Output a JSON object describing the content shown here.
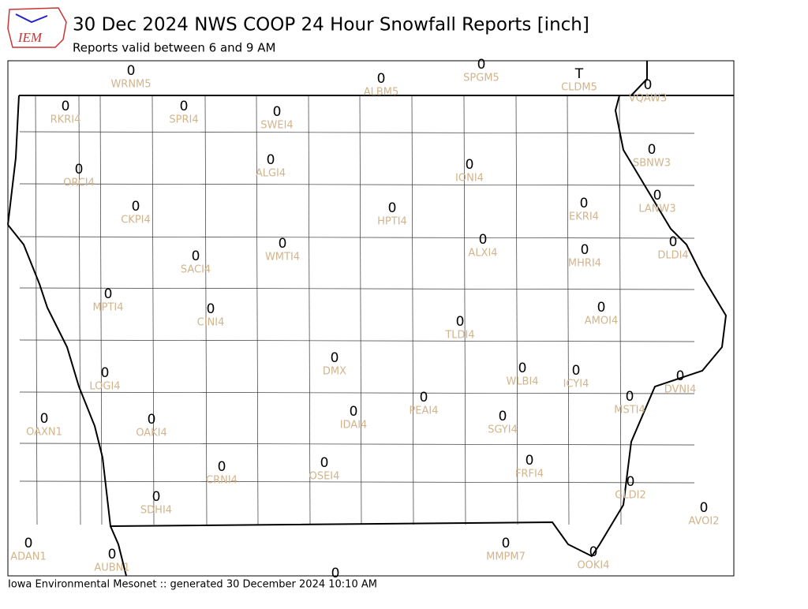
{
  "header": {
    "logo_text": "IEM",
    "title": "30 Dec 2024 NWS COOP 24 Hour Snowfall Reports [inch]",
    "subtitle": "Reports valid between 6 and 9 AM"
  },
  "stations": [
    {
      "value": 0,
      "id": "WRNM5"
    },
    {
      "value": 0,
      "id": "ALBM5"
    },
    {
      "value": 0,
      "id": "SPGM5"
    },
    {
      "value": "T",
      "id": "CLDM5"
    },
    {
      "value": 0,
      "id": "VQAW3"
    },
    {
      "value": 0,
      "id": "RKRI4"
    },
    {
      "value": 0,
      "id": "SPRI4"
    },
    {
      "value": 0,
      "id": "SWEI4"
    },
    {
      "value": 0,
      "id": "SBNW3"
    },
    {
      "value": 0,
      "id": "ORCI4"
    },
    {
      "value": 0,
      "id": "ALGI4"
    },
    {
      "value": 0,
      "id": "IONI4"
    },
    {
      "value": 0,
      "id": "CKPI4"
    },
    {
      "value": 0,
      "id": "HPTI4"
    },
    {
      "value": 0,
      "id": "EKRI4"
    },
    {
      "value": 0,
      "id": "LANW3"
    },
    {
      "value": 0,
      "id": "SACI4"
    },
    {
      "value": 0,
      "id": "WMTI4"
    },
    {
      "value": 0,
      "id": "ALXI4"
    },
    {
      "value": 0,
      "id": "MHRI4"
    },
    {
      "value": 0,
      "id": "DLDI4"
    },
    {
      "value": 0,
      "id": "MPTI4"
    },
    {
      "value": 0,
      "id": "CINI4"
    },
    {
      "value": 0,
      "id": "TLDI4"
    },
    {
      "value": 0,
      "id": "AMOI4"
    },
    {
      "value": 0,
      "id": "DMX"
    },
    {
      "value": 0,
      "id": "LOGI4"
    },
    {
      "value": 0,
      "id": "WLBI4"
    },
    {
      "value": 0,
      "id": "ICYI4"
    },
    {
      "value": 0,
      "id": "DVNI4"
    },
    {
      "value": 0,
      "id": "PEAI4"
    },
    {
      "value": 0,
      "id": "OAXN1"
    },
    {
      "value": 0,
      "id": "OAKI4"
    },
    {
      "value": 0,
      "id": "IDAI4"
    },
    {
      "value": 0,
      "id": "SGYI4"
    },
    {
      "value": 0,
      "id": "MSTI4"
    },
    {
      "value": 0,
      "id": "CRNI4"
    },
    {
      "value": 0,
      "id": "OSEI4"
    },
    {
      "value": 0,
      "id": "FRFI4"
    },
    {
      "value": 0,
      "id": "GLDI2"
    },
    {
      "value": 0,
      "id": "SDHI4"
    },
    {
      "value": 0,
      "id": "AVOI2"
    },
    {
      "value": 0,
      "id": "ADAN1"
    },
    {
      "value": 0,
      "id": "AUBN1"
    },
    {
      "value": 0,
      "id": "MMPM7"
    },
    {
      "value": 0,
      "id": "OOKI4"
    },
    {
      "value": 0
    }
  ],
  "footer": "Iowa Environmental Mesonet :: generated 30 December 2024 10:10 AM"
}
